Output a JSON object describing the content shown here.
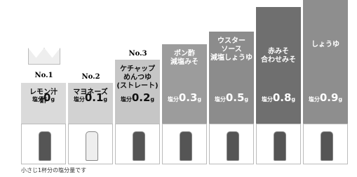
{
  "items": [
    {
      "rank": "No.1",
      "name": [
        "レモン汁",
        "酢"
      ],
      "salt_label": "塩分",
      "amount": "0",
      "unit": "g"
    },
    {
      "rank": "No.2",
      "name": [
        "マヨネーズ"
      ],
      "salt_label": "塩分",
      "amount": "0.1",
      "unit": "g"
    },
    {
      "rank": "No.3",
      "name": [
        "ケチャップ",
        "めんつゆ",
        "(ストレート)"
      ],
      "salt_label": "塩分",
      "amount": "0.2",
      "unit": "g"
    },
    {
      "name": [
        "ポン酢",
        "減塩みそ"
      ],
      "salt_label": "塩分",
      "amount": "0.3",
      "unit": "g"
    },
    {
      "name": [
        "ウスター",
        "ソース",
        "減塩しょうゆ"
      ],
      "salt_label": "塩分",
      "amount": "0.5",
      "unit": "g"
    },
    {
      "name": [
        "赤みそ",
        "合わせみそ"
      ],
      "salt_label": "塩分",
      "amount": "0.8",
      "unit": "g"
    },
    {
      "name": [
        "しょうゆ"
      ],
      "salt_label": "塩分",
      "amount": "0.9",
      "unit": "g"
    }
  ],
  "footnote": "小さじ1杯分の塩分量です"
}
